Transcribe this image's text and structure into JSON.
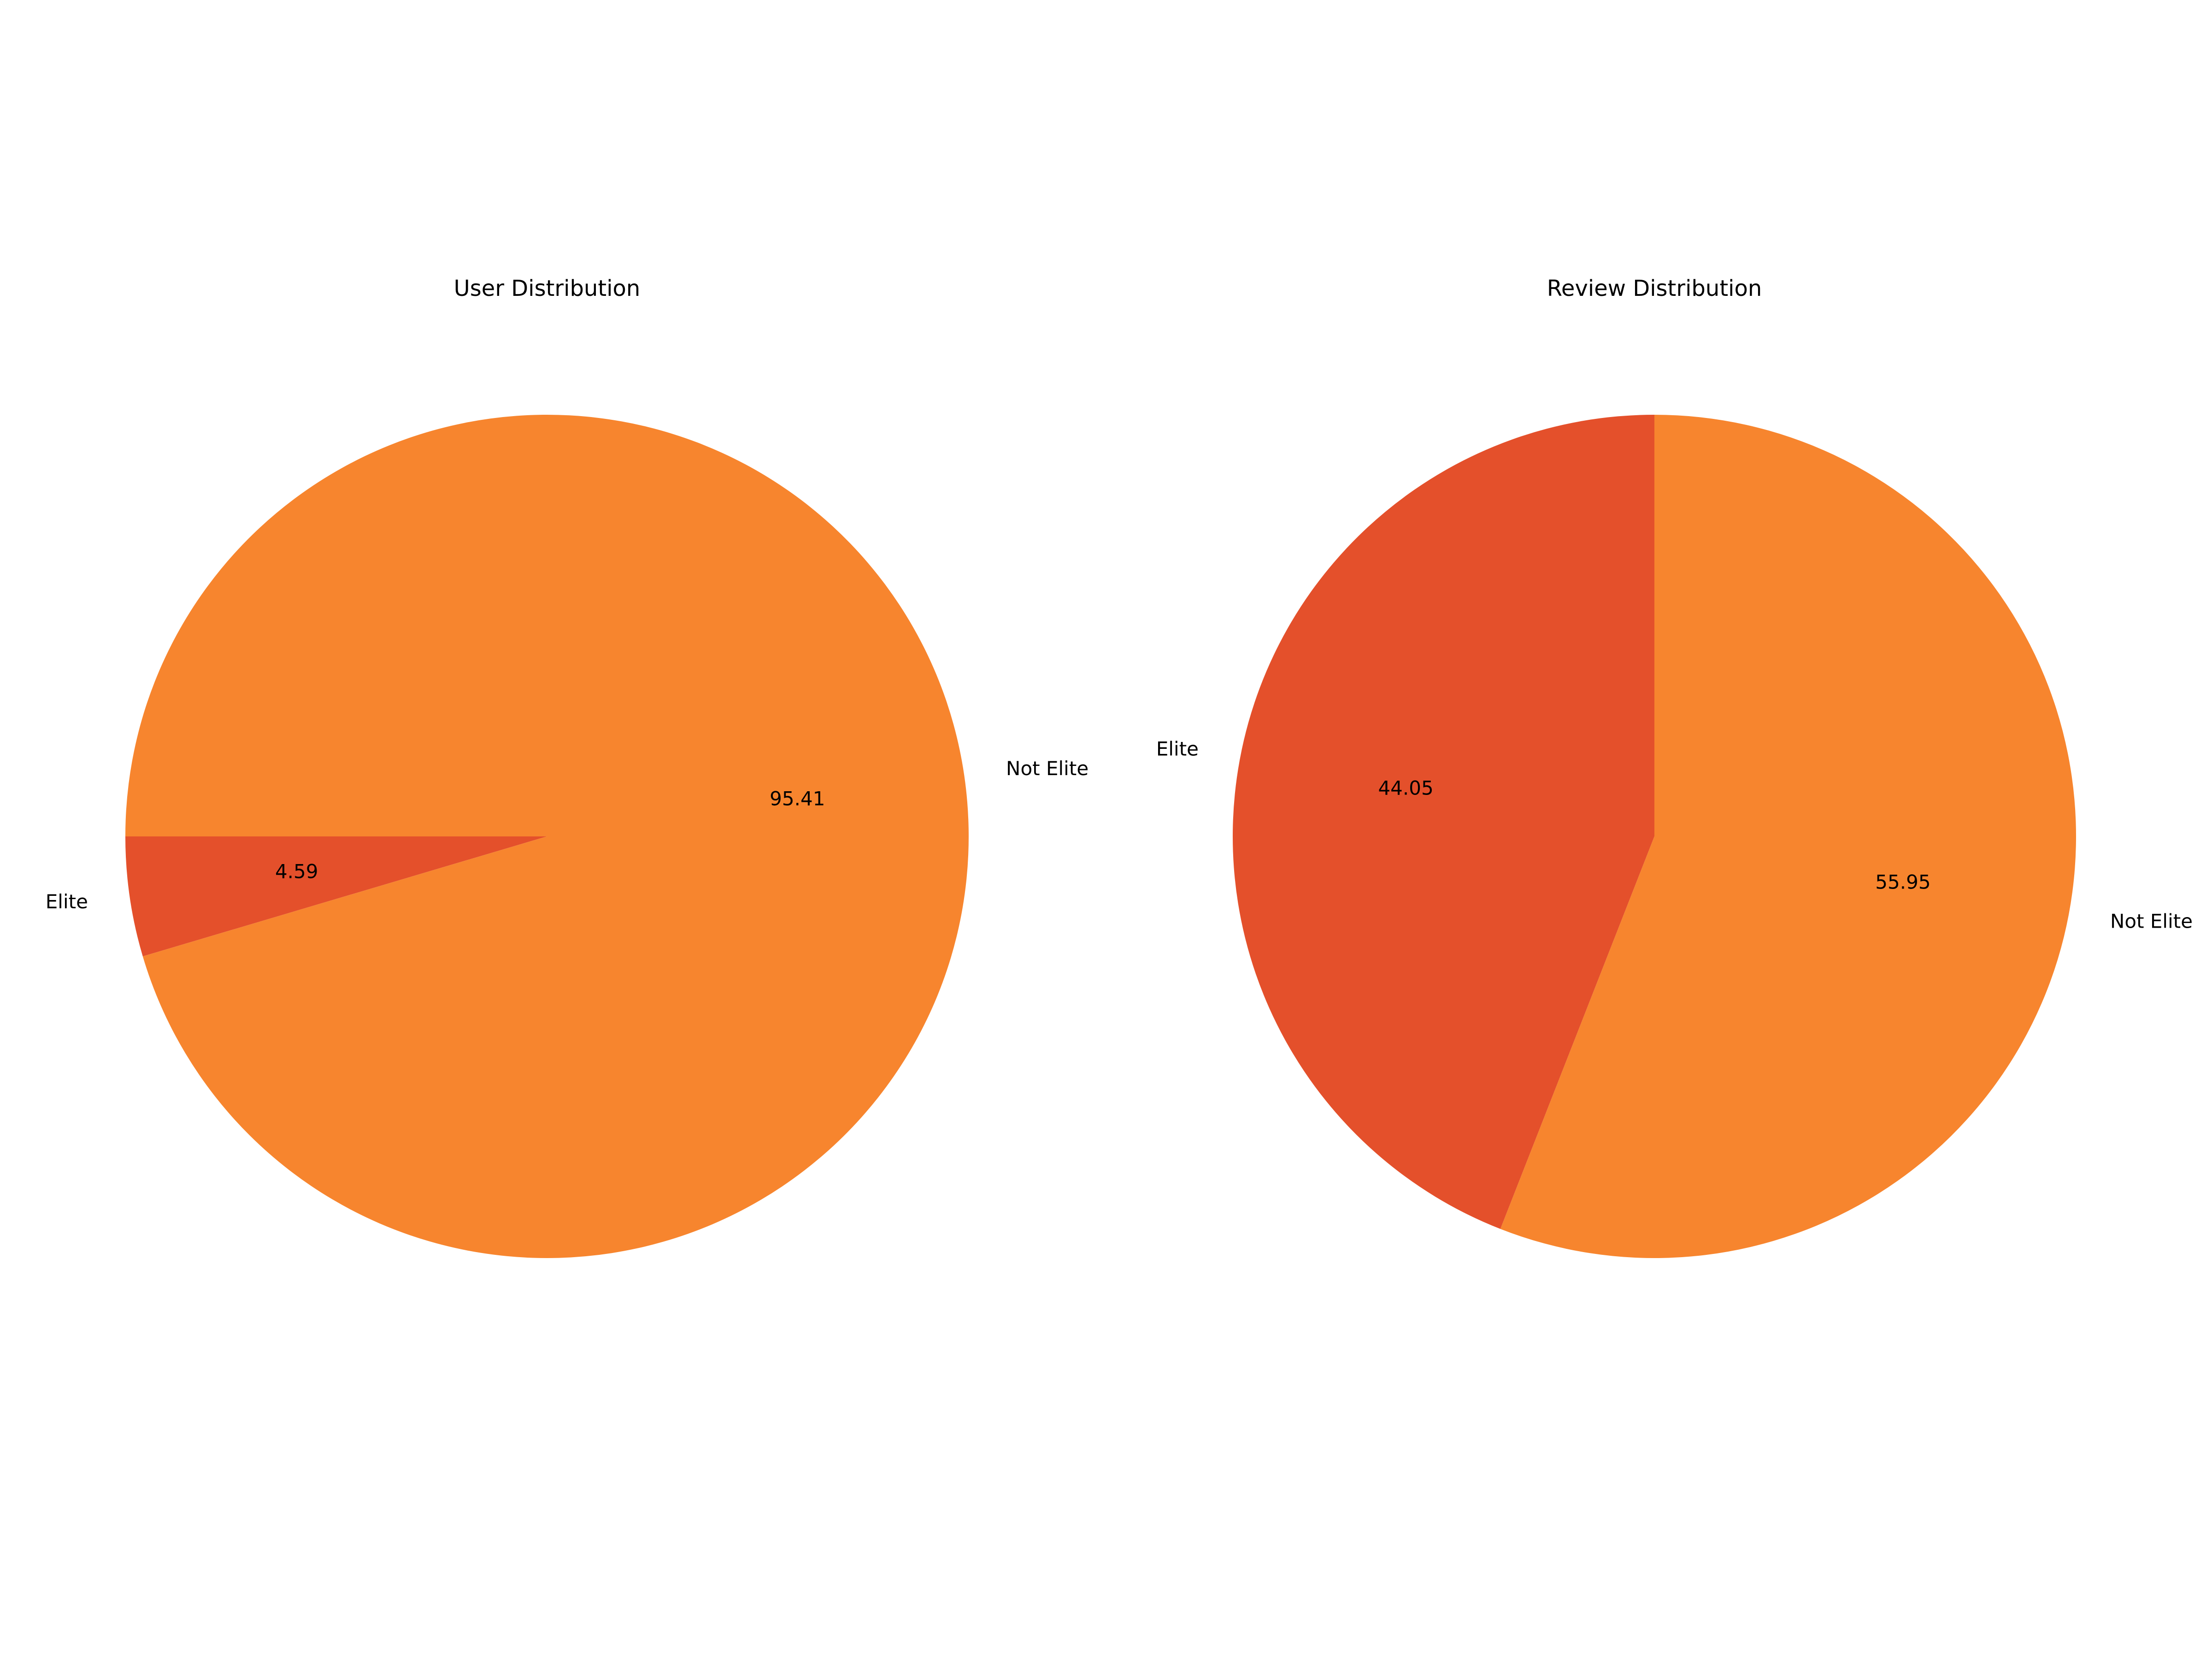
{
  "chart_data": [
    {
      "type": "pie",
      "title": "User Distribution",
      "slices": [
        {
          "label": "Elite",
          "value": 4.59,
          "pct_text": "4.59",
          "color": "#e4502b"
        },
        {
          "label": "Not Elite",
          "value": 95.41,
          "pct_text": "95.41",
          "color": "#f7852e"
        }
      ],
      "start_angle_deg": 180,
      "direction": "counterclockwise"
    },
    {
      "type": "pie",
      "title": "Review Distribution",
      "slices": [
        {
          "label": "Elite",
          "value": 44.05,
          "pct_text": "44.05",
          "color": "#e4502b"
        },
        {
          "label": "Not Elite",
          "value": 55.95,
          "pct_text": "55.95",
          "color": "#f7852e"
        }
      ],
      "start_angle_deg": 90,
      "direction": "counterclockwise"
    }
  ]
}
